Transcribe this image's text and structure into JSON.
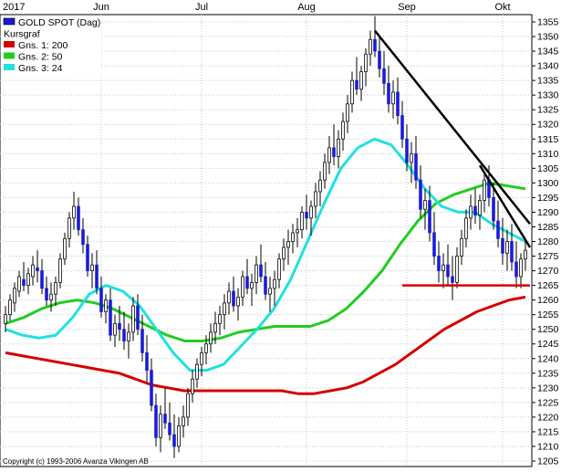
{
  "chart_data": {
    "type": "candlestick",
    "instrument": "GOLD SPOT (Dag)",
    "style_label": "Kursgraf",
    "legend": [
      {
        "label": "GOLD SPOT (Dag)",
        "color": "#1a1ad6"
      },
      {
        "label": "Kursgraf",
        "color": ""
      },
      {
        "label": "Gns. 1: 200",
        "color": "#d40000"
      },
      {
        "label": "Gns. 2: 50",
        "color": "#22cc22"
      },
      {
        "label": "Gns. 3: 24",
        "color": "#22e0e0"
      }
    ],
    "month_labels": [
      "2017",
      "Jun",
      "Jul",
      "Aug",
      "Sep",
      "Okt"
    ],
    "y_ticks": [
      1205,
      1210,
      1215,
      1220,
      1225,
      1230,
      1235,
      1240,
      1245,
      1250,
      1255,
      1260,
      1265,
      1270,
      1275,
      1280,
      1285,
      1290,
      1295,
      1300,
      1305,
      1310,
      1315,
      1320,
      1325,
      1330,
      1335,
      1340,
      1345,
      1350,
      1355
    ],
    "ylim": [
      1203,
      1359
    ],
    "grid": true,
    "copyright": "Copyright (c) 1993-2006 Avanza Vikingen AB",
    "candles": [
      [
        1252,
        1258,
        1249,
        1255
      ],
      [
        1255,
        1262,
        1253,
        1260
      ],
      [
        1259,
        1266,
        1256,
        1264
      ],
      [
        1263,
        1270,
        1261,
        1268
      ],
      [
        1267,
        1273,
        1263,
        1265
      ],
      [
        1265,
        1271,
        1262,
        1269
      ],
      [
        1268,
        1275,
        1265,
        1272
      ],
      [
        1271,
        1277,
        1266,
        1270
      ],
      [
        1270,
        1274,
        1262,
        1264
      ],
      [
        1264,
        1268,
        1258,
        1260
      ],
      [
        1260,
        1266,
        1256,
        1262
      ],
      [
        1262,
        1268,
        1258,
        1266
      ],
      [
        1266,
        1276,
        1264,
        1274
      ],
      [
        1274,
        1283,
        1272,
        1281
      ],
      [
        1281,
        1290,
        1278,
        1288
      ],
      [
        1288,
        1297,
        1284,
        1292
      ],
      [
        1292,
        1295,
        1282,
        1284
      ],
      [
        1284,
        1288,
        1276,
        1279
      ],
      [
        1279,
        1282,
        1268,
        1270
      ],
      [
        1270,
        1276,
        1264,
        1272
      ],
      [
        1272,
        1277,
        1262,
        1264
      ],
      [
        1264,
        1268,
        1254,
        1256
      ],
      [
        1256,
        1262,
        1252,
        1260
      ],
      [
        1260,
        1264,
        1246,
        1248
      ],
      [
        1248,
        1255,
        1244,
        1252
      ],
      [
        1252,
        1258,
        1246,
        1250
      ],
      [
        1250,
        1256,
        1243,
        1246
      ],
      [
        1246,
        1252,
        1240,
        1249
      ],
      [
        1249,
        1261,
        1246,
        1258
      ],
      [
        1258,
        1262,
        1248,
        1250
      ],
      [
        1250,
        1255,
        1239,
        1242
      ],
      [
        1242,
        1248,
        1232,
        1236
      ],
      [
        1236,
        1240,
        1222,
        1224
      ],
      [
        1224,
        1228,
        1210,
        1213
      ],
      [
        1213,
        1224,
        1208,
        1221
      ],
      [
        1221,
        1230,
        1216,
        1218
      ],
      [
        1218,
        1225,
        1212,
        1214
      ],
      [
        1214,
        1221,
        1206,
        1210
      ],
      [
        1210,
        1220,
        1208,
        1217
      ],
      [
        1217,
        1224,
        1213,
        1220
      ],
      [
        1220,
        1230,
        1217,
        1228
      ],
      [
        1228,
        1236,
        1225,
        1233
      ],
      [
        1233,
        1240,
        1230,
        1238
      ],
      [
        1238,
        1244,
        1234,
        1242
      ],
      [
        1242,
        1248,
        1238,
        1245
      ],
      [
        1245,
        1252,
        1242,
        1249
      ],
      [
        1249,
        1256,
        1245,
        1252
      ],
      [
        1252,
        1258,
        1248,
        1255
      ],
      [
        1255,
        1262,
        1250,
        1259
      ],
      [
        1259,
        1266,
        1255,
        1263
      ],
      [
        1263,
        1268,
        1256,
        1258
      ],
      [
        1258,
        1264,
        1253,
        1261
      ],
      [
        1261,
        1270,
        1258,
        1268
      ],
      [
        1268,
        1274,
        1262,
        1264
      ],
      [
        1264,
        1269,
        1258,
        1266
      ],
      [
        1266,
        1275,
        1262,
        1272
      ],
      [
        1272,
        1279,
        1266,
        1268
      ],
      [
        1268,
        1273,
        1260,
        1262
      ],
      [
        1262,
        1268,
        1256,
        1264
      ],
      [
        1264,
        1270,
        1258,
        1267
      ],
      [
        1267,
        1276,
        1264,
        1274
      ],
      [
        1274,
        1281,
        1270,
        1278
      ],
      [
        1278,
        1284,
        1272,
        1280
      ],
      [
        1280,
        1286,
        1276,
        1283
      ],
      [
        1283,
        1288,
        1278,
        1284
      ],
      [
        1284,
        1292,
        1281,
        1290
      ],
      [
        1290,
        1296,
        1284,
        1288
      ],
      [
        1288,
        1294,
        1282,
        1292
      ],
      [
        1292,
        1300,
        1288,
        1297
      ],
      [
        1297,
        1304,
        1292,
        1301
      ],
      [
        1301,
        1310,
        1298,
        1307
      ],
      [
        1307,
        1316,
        1303,
        1312
      ],
      [
        1312,
        1320,
        1306,
        1309
      ],
      [
        1309,
        1318,
        1305,
        1315
      ],
      [
        1315,
        1324,
        1311,
        1321
      ],
      [
        1321,
        1330,
        1317,
        1327
      ],
      [
        1327,
        1338,
        1324,
        1335
      ],
      [
        1335,
        1343,
        1330,
        1332
      ],
      [
        1332,
        1340,
        1328,
        1338
      ],
      [
        1338,
        1346,
        1333,
        1344
      ],
      [
        1344,
        1352,
        1340,
        1349
      ],
      [
        1349,
        1357,
        1343,
        1345
      ],
      [
        1345,
        1350,
        1336,
        1339
      ],
      [
        1339,
        1345,
        1330,
        1334
      ],
      [
        1334,
        1340,
        1324,
        1327
      ],
      [
        1327,
        1335,
        1322,
        1331
      ],
      [
        1331,
        1336,
        1320,
        1323
      ],
      [
        1323,
        1328,
        1312,
        1315
      ],
      [
        1315,
        1320,
        1304,
        1307
      ],
      [
        1307,
        1314,
        1300,
        1310
      ],
      [
        1310,
        1316,
        1298,
        1301
      ],
      [
        1301,
        1306,
        1288,
        1291
      ],
      [
        1291,
        1298,
        1284,
        1294
      ],
      [
        1294,
        1299,
        1280,
        1283
      ],
      [
        1283,
        1290,
        1272,
        1275
      ],
      [
        1275,
        1280,
        1266,
        1270
      ],
      [
        1270,
        1276,
        1264,
        1272
      ],
      [
        1272,
        1279,
        1265,
        1268
      ],
      [
        1268,
        1275,
        1260,
        1266
      ],
      [
        1266,
        1278,
        1264,
        1275
      ],
      [
        1275,
        1284,
        1272,
        1281
      ],
      [
        1281,
        1291,
        1278,
        1288
      ],
      [
        1288,
        1296,
        1284,
        1292
      ],
      [
        1292,
        1298,
        1286,
        1289
      ],
      [
        1289,
        1296,
        1284,
        1294
      ],
      [
        1294,
        1304,
        1290,
        1301
      ],
      [
        1301,
        1306,
        1292,
        1295
      ],
      [
        1295,
        1300,
        1284,
        1287
      ],
      [
        1287,
        1294,
        1278,
        1281
      ],
      [
        1281,
        1288,
        1272,
        1276
      ],
      [
        1276,
        1284,
        1270,
        1280
      ],
      [
        1280,
        1286,
        1270,
        1273
      ],
      [
        1273,
        1280,
        1264,
        1268
      ],
      [
        1268,
        1276,
        1264,
        1274
      ],
      [
        1274,
        1280,
        1270,
        1277
      ]
    ],
    "series": [
      {
        "name": "Gns. 1: 200",
        "color": "#d40000",
        "values": [
          1242,
          1241,
          1240,
          1239,
          1238,
          1237,
          1236,
          1235,
          1233,
          1231,
          1230,
          1229,
          1229,
          1229,
          1229,
          1229,
          1229,
          1229,
          1228,
          1228,
          1229,
          1230,
          1232,
          1235,
          1238,
          1242,
          1246,
          1250,
          1253,
          1256,
          1258,
          1260,
          1261
        ]
      },
      {
        "name": "Gns. 2: 50",
        "color": "#22cc22",
        "values": [
          1252,
          1254,
          1257,
          1259,
          1260,
          1259,
          1257,
          1254,
          1251,
          1248,
          1246,
          1246,
          1247,
          1249,
          1250,
          1251,
          1251,
          1251,
          1253,
          1257,
          1263,
          1270,
          1279,
          1287,
          1293,
          1296,
          1298,
          1300,
          1299,
          1298
        ]
      },
      {
        "name": "Gns. 3: 24",
        "color": "#22e0e0",
        "values": [
          1250,
          1248,
          1247,
          1248,
          1254,
          1262,
          1265,
          1263,
          1258,
          1250,
          1242,
          1236,
          1236,
          1238,
          1244,
          1250,
          1257,
          1267,
          1280,
          1293,
          1305,
          1312,
          1315,
          1313,
          1306,
          1298,
          1292,
          1290,
          1290,
          1286,
          1283,
          1280
        ]
      }
    ],
    "trendlines": [
      {
        "color": "#000000",
        "points": [
          [
            81,
            1352
          ],
          [
            115,
            1286
          ]
        ]
      },
      {
        "color": "#000000",
        "points": [
          [
            104,
            1306
          ],
          [
            115,
            1278
          ]
        ]
      },
      {
        "color": "#d40000",
        "points": [
          [
            87,
            1265
          ],
          [
            115,
            1265
          ]
        ]
      }
    ]
  }
}
